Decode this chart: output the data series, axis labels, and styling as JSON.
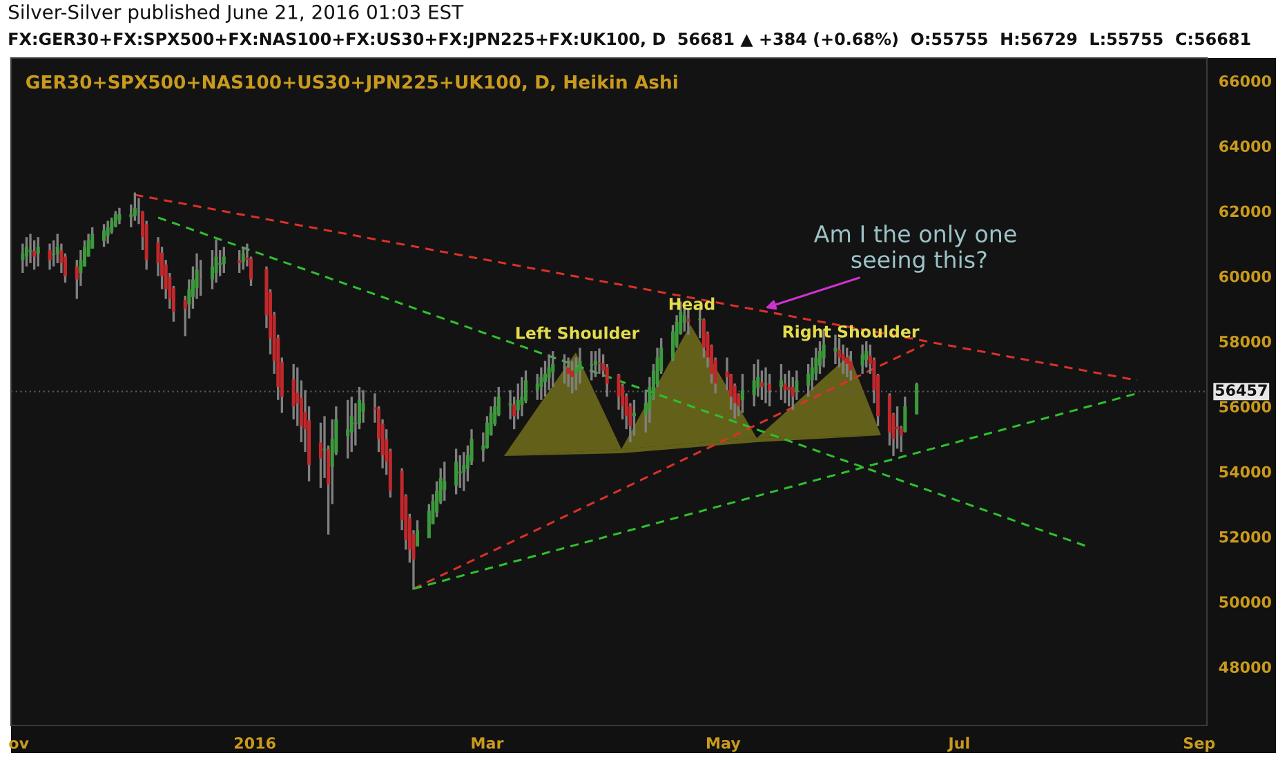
{
  "chart_data": {
    "type": "candlestick",
    "title": "GER30+SPX500+NAS100+US30+JPN225+UK100, D, Heikin Ashi",
    "x": [
      "2015-11-02",
      "2015-11-03",
      "2015-11-04",
      "2015-11-05",
      "2015-11-06",
      "2015-11-09",
      "2015-11-10",
      "2015-11-11",
      "2015-11-12",
      "2015-11-13",
      "2015-11-16",
      "2015-11-17",
      "2015-11-18",
      "2015-11-19",
      "2015-11-20",
      "2015-11-23",
      "2015-11-24",
      "2015-11-25",
      "2015-11-26",
      "2015-11-27",
      "2015-11-30",
      "2015-12-01",
      "2015-12-02",
      "2015-12-03",
      "2015-12-04",
      "2015-12-07",
      "2015-12-08",
      "2015-12-09",
      "2015-12-10",
      "2015-12-11",
      "2015-12-14",
      "2015-12-15",
      "2015-12-16",
      "2015-12-17",
      "2015-12-18",
      "2015-12-21",
      "2015-12-22",
      "2015-12-23",
      "2015-12-24",
      "2015-12-28",
      "2015-12-29",
      "2015-12-30",
      "2015-12-31",
      "2016-01-04",
      "2016-01-05",
      "2016-01-06",
      "2016-01-07",
      "2016-01-08",
      "2016-01-11",
      "2016-01-12",
      "2016-01-13",
      "2016-01-14",
      "2016-01-15",
      "2016-01-18",
      "2016-01-19",
      "2016-01-20",
      "2016-01-21",
      "2016-01-22",
      "2016-01-25",
      "2016-01-26",
      "2016-01-27",
      "2016-01-28",
      "2016-01-29",
      "2016-02-01",
      "2016-02-02",
      "2016-02-03",
      "2016-02-04",
      "2016-02-05",
      "2016-02-08",
      "2016-02-09",
      "2016-02-10",
      "2016-02-11",
      "2016-02-12",
      "2016-02-15",
      "2016-02-16",
      "2016-02-17",
      "2016-02-18",
      "2016-02-19",
      "2016-02-22",
      "2016-02-23",
      "2016-02-24",
      "2016-02-25",
      "2016-02-26",
      "2016-02-29",
      "2016-03-01",
      "2016-03-02",
      "2016-03-03",
      "2016-03-04",
      "2016-03-07",
      "2016-03-08",
      "2016-03-09",
      "2016-03-10",
      "2016-03-11",
      "2016-03-14",
      "2016-03-15",
      "2016-03-16",
      "2016-03-17",
      "2016-03-18",
      "2016-03-21",
      "2016-03-22",
      "2016-03-23",
      "2016-03-24",
      "2016-03-25",
      "2016-03-28",
      "2016-03-29",
      "2016-03-30",
      "2016-03-31",
      "2016-04-01",
      "2016-04-04",
      "2016-04-05",
      "2016-04-06",
      "2016-04-07",
      "2016-04-08",
      "2016-04-11",
      "2016-04-12",
      "2016-04-13",
      "2016-04-14",
      "2016-04-15",
      "2016-04-18",
      "2016-04-19",
      "2016-04-20",
      "2016-04-21",
      "2016-04-22",
      "2016-04-25",
      "2016-04-26",
      "2016-04-27",
      "2016-04-28",
      "2016-04-29",
      "2016-05-02",
      "2016-05-03",
      "2016-05-04",
      "2016-05-05",
      "2016-05-06",
      "2016-05-09",
      "2016-05-10",
      "2016-05-11",
      "2016-05-12",
      "2016-05-13",
      "2016-05-16",
      "2016-05-17",
      "2016-05-18",
      "2016-05-19",
      "2016-05-20",
      "2016-05-23",
      "2016-05-24",
      "2016-05-25",
      "2016-05-26",
      "2016-05-27",
      "2016-05-30",
      "2016-05-31",
      "2016-06-01",
      "2016-06-02",
      "2016-06-03",
      "2016-06-06",
      "2016-06-07",
      "2016-06-08",
      "2016-06-09",
      "2016-06-10",
      "2016-06-13",
      "2016-06-14",
      "2016-06-15",
      "2016-06-16",
      "2016-06-17",
      "2016-06-20"
    ],
    "ohlc": [
      [
        60500,
        61000,
        60100,
        60700
      ],
      [
        60600,
        61200,
        60300,
        60900
      ],
      [
        60750,
        61300,
        60400,
        60800
      ],
      [
        60780,
        61100,
        60200,
        60600
      ],
      [
        60690,
        61200,
        60300,
        60900
      ],
      [
        60800,
        61000,
        60200,
        60500
      ],
      [
        60650,
        61100,
        60300,
        60700
      ],
      [
        60680,
        61300,
        60400,
        60900
      ],
      [
        60790,
        61000,
        60100,
        60400
      ],
      [
        60600,
        60700,
        59800,
        60000
      ],
      [
        60300,
        60500,
        59300,
        59900
      ],
      [
        60100,
        60800,
        59700,
        60500
      ],
      [
        60300,
        61100,
        60300,
        60900
      ],
      [
        60600,
        61300,
        60600,
        61100
      ],
      [
        60850,
        61500,
        60850,
        61300
      ],
      [
        61080,
        61600,
        60900,
        61400
      ],
      [
        61240,
        61700,
        61000,
        61500
      ],
      [
        61370,
        61800,
        61300,
        61700
      ],
      [
        61530,
        62000,
        61500,
        61900
      ],
      [
        61720,
        62100,
        61600,
        61900
      ],
      [
        61810,
        62200,
        61500,
        61900
      ],
      [
        61850,
        62570,
        61700,
        62100
      ],
      [
        61980,
        62400,
        61600,
        62000
      ],
      [
        61990,
        62000,
        60800,
        61200
      ],
      [
        61600,
        61700,
        60200,
        60500
      ],
      [
        61050,
        61200,
        60000,
        60400
      ],
      [
        60720,
        60900,
        59600,
        60000
      ],
      [
        60360,
        60500,
        59300,
        59600
      ],
      [
        59980,
        60100,
        59000,
        59300
      ],
      [
        59640,
        59700,
        58600,
        58900
      ],
      [
        59270,
        59400,
        58160,
        59000
      ],
      [
        59130,
        59900,
        58700,
        59600
      ],
      [
        59360,
        60300,
        59000,
        59900
      ],
      [
        59630,
        60700,
        59300,
        60200
      ],
      [
        59910,
        60500,
        59400,
        59900
      ],
      [
        59900,
        60800,
        59600,
        60300
      ],
      [
        60100,
        61130,
        59800,
        60600
      ],
      [
        60350,
        60800,
        60000,
        60400
      ],
      [
        60380,
        60900,
        60100,
        60600
      ],
      [
        60490,
        60800,
        60100,
        60400
      ],
      [
        60440,
        60900,
        60200,
        60700
      ],
      [
        60570,
        61000,
        60300,
        60500
      ],
      [
        60540,
        60600,
        59700,
        59900
      ],
      [
        60220,
        60300,
        58400,
        58800
      ],
      [
        59510,
        59600,
        57600,
        58100
      ],
      [
        58810,
        58900,
        57000,
        57400
      ],
      [
        58110,
        58200,
        56200,
        56600
      ],
      [
        57360,
        57500,
        55800,
        56300
      ],
      [
        56830,
        57300,
        55600,
        56000
      ],
      [
        56420,
        57200,
        55400,
        56100
      ],
      [
        56260,
        56800,
        54900,
        55400
      ],
      [
        55830,
        56500,
        54600,
        55300
      ],
      [
        55570,
        56000,
        53700,
        54200
      ],
      [
        54890,
        55500,
        53500,
        54400
      ],
      [
        54650,
        55700,
        53800,
        54700
      ],
      [
        54680,
        54800,
        52060,
        53600
      ],
      [
        54140,
        55600,
        53000,
        55000
      ],
      [
        54570,
        56000,
        54500,
        55600
      ],
      [
        55090,
        56200,
        54400,
        55300
      ],
      [
        55200,
        56300,
        54600,
        55700
      ],
      [
        55450,
        56100,
        54800,
        55500
      ],
      [
        55480,
        56600,
        55300,
        56200
      ],
      [
        55840,
        56500,
        55500,
        56100
      ],
      [
        55970,
        56400,
        55500,
        55900
      ],
      [
        55930,
        56000,
        54600,
        55000
      ],
      [
        55470,
        55600,
        54100,
        54500
      ],
      [
        54990,
        55300,
        53900,
        54300
      ],
      [
        54640,
        54700,
        53200,
        53400
      ],
      [
        54020,
        54100,
        52200,
        52500
      ],
      [
        53260,
        53300,
        51600,
        51900
      ],
      [
        52580,
        52700,
        51200,
        51600
      ],
      [
        52090,
        52200,
        50370,
        51300
      ],
      [
        51700,
        52500,
        51700,
        52200
      ],
      [
        51950,
        53000,
        51950,
        52800
      ],
      [
        52380,
        53300,
        52380,
        53100
      ],
      [
        52740,
        53700,
        52600,
        53400
      ],
      [
        53070,
        54100,
        53000,
        53800
      ],
      [
        53440,
        54300,
        53100,
        53700
      ],
      [
        53570,
        54700,
        53300,
        54300
      ],
      [
        53940,
        54500,
        53500,
        54000
      ],
      [
        53970,
        54600,
        53400,
        54200
      ],
      [
        54090,
        54800,
        53700,
        54500
      ],
      [
        54300,
        55300,
        54200,
        55000
      ],
      [
        54650,
        55200,
        54300,
        54800
      ],
      [
        54730,
        55700,
        54700,
        55500
      ],
      [
        55120,
        56000,
        55100,
        55800
      ],
      [
        55460,
        56300,
        55400,
        56000
      ],
      [
        55730,
        56600,
        55700,
        56300
      ],
      [
        56020,
        56500,
        55600,
        56100
      ],
      [
        56060,
        56300,
        55300,
        55700
      ],
      [
        55880,
        56700,
        55600,
        56200
      ],
      [
        56040,
        56900,
        55700,
        56300
      ],
      [
        56170,
        57100,
        56100,
        56800
      ],
      [
        56490,
        57000,
        56200,
        56700
      ],
      [
        56600,
        57200,
        56200,
        56900
      ],
      [
        56750,
        57400,
        56300,
        57000
      ],
      [
        56880,
        57600,
        56500,
        57200
      ],
      [
        57040,
        57700,
        56600,
        57300
      ],
      [
        57170,
        57600,
        56700,
        57200
      ],
      [
        57190,
        57500,
        56600,
        57000
      ],
      [
        57100,
        57400,
        56400,
        56900
      ],
      [
        57000,
        57500,
        56500,
        57200
      ],
      [
        57100,
        57800,
        56700,
        57400
      ],
      [
        57250,
        57700,
        56800,
        57300
      ],
      [
        57280,
        57700,
        56900,
        57400
      ],
      [
        57340,
        57780,
        57000,
        57300
      ],
      [
        57320,
        57600,
        56900,
        57100
      ],
      [
        57210,
        57300,
        56300,
        56700
      ],
      [
        56960,
        57000,
        55900,
        56300
      ],
      [
        56630,
        56700,
        55600,
        56000
      ],
      [
        56310,
        56400,
        55300,
        55700
      ],
      [
        56010,
        56100,
        54900,
        55400
      ],
      [
        55700,
        56200,
        55100,
        55800
      ],
      [
        55750,
        56500,
        55200,
        56100
      ],
      [
        55930,
        56900,
        55500,
        56600
      ],
      [
        56260,
        57300,
        56200,
        57100
      ],
      [
        56680,
        57800,
        56600,
        57500
      ],
      [
        57090,
        58100,
        57000,
        57800
      ],
      [
        57450,
        58500,
        57400,
        58300
      ],
      [
        57870,
        58800,
        57800,
        58600
      ],
      [
        58240,
        59220,
        58200,
        58900
      ],
      [
        58570,
        59100,
        58300,
        58800
      ],
      [
        58690,
        59000,
        58200,
        58600
      ],
      [
        58650,
        59000,
        58100,
        58700
      ],
      [
        58670,
        58700,
        57500,
        57800
      ],
      [
        58240,
        58300,
        57200,
        57500
      ],
      [
        57870,
        57900,
        56700,
        57000
      ],
      [
        57440,
        57500,
        56400,
        56700
      ],
      [
        57070,
        57500,
        56500,
        56900
      ],
      [
        56990,
        57000,
        55900,
        56300
      ],
      [
        56640,
        56700,
        55620,
        56100
      ],
      [
        56370,
        56400,
        55700,
        56000
      ],
      [
        56190,
        57000,
        55800,
        56500
      ],
      [
        56340,
        57300,
        56000,
        56800
      ],
      [
        56570,
        57440,
        56300,
        56900
      ],
      [
        56740,
        57100,
        56200,
        56600
      ],
      [
        56670,
        57200,
        56100,
        56700
      ],
      [
        56690,
        57000,
        56000,
        56500
      ],
      [
        56600,
        57300,
        56200,
        56800
      ],
      [
        56700,
        57000,
        56100,
        56500
      ],
      [
        56600,
        57100,
        56000,
        56500
      ],
      [
        56600,
        56900,
        55900,
        56300
      ],
      [
        56450,
        57100,
        56200,
        56800
      ],
      [
        56630,
        57300,
        56300,
        57000
      ],
      [
        56810,
        57500,
        56500,
        57200
      ],
      [
        57010,
        57800,
        56800,
        57500
      ],
      [
        57250,
        58000,
        57000,
        57700
      ],
      [
        57480,
        58370,
        57200,
        57900
      ],
      [
        57690,
        58200,
        57300,
        57800
      ],
      [
        57740,
        58100,
        57200,
        57500
      ],
      [
        57620,
        57900,
        57000,
        57400
      ],
      [
        57510,
        57800,
        56900,
        57300
      ],
      [
        57400,
        57700,
        56800,
        57100
      ],
      [
        57250,
        57900,
        57000,
        57600
      ],
      [
        57430,
        58000,
        57200,
        57700
      ],
      [
        57560,
        57900,
        57000,
        57300
      ],
      [
        57430,
        57500,
        56100,
        56500
      ],
      [
        56960,
        57000,
        55400,
        55700
      ],
      [
        56330,
        56400,
        54800,
        55200
      ],
      [
        55760,
        55800,
        54480,
        55000
      ],
      [
        55380,
        56000,
        54700,
        55300
      ],
      [
        55340,
        55400,
        54600,
        55100
      ],
      [
        55220,
        56300,
        55200,
        56000
      ],
      [
        55755,
        56729,
        55755,
        56681
      ]
    ],
    "series": [
      {
        "type": "line",
        "x": [
          "2015-12-01",
          "2016-08-16"
        ],
        "values": [
          62500,
          56800
        ],
        "color": "#d9312b",
        "line_style": "dashed"
      },
      {
        "type": "line",
        "x": [
          "2015-12-07",
          "2016-08-03"
        ],
        "values": [
          61800,
          51700
        ],
        "color": "#2fbf2f",
        "line_style": "dashed"
      },
      {
        "type": "line",
        "x": [
          "2016-02-11",
          "2016-06-22"
        ],
        "values": [
          50400,
          57900
        ],
        "color": "#d9312b",
        "line_style": "dashed"
      },
      {
        "type": "line",
        "x": [
          "2016-02-11",
          "2016-08-16"
        ],
        "values": [
          50400,
          56400
        ],
        "color": "#2fbf2f",
        "line_style": "dashed"
      }
    ],
    "xlim": [
      "2015-10-30",
      "2016-09-03"
    ],
    "xticks": [
      {
        "value": "2015-11-01",
        "label": "ov"
      },
      {
        "value": "2016-01-01",
        "label": "2016"
      },
      {
        "value": "2016-03-01",
        "label": "Mar"
      },
      {
        "value": "2016-05-01",
        "label": "May"
      },
      {
        "value": "2016-07-01",
        "label": "Jul"
      },
      {
        "value": "2016-09-01",
        "label": "Sep"
      }
    ],
    "ylim": [
      46200,
      66700
    ],
    "yticks": [
      48000,
      50000,
      52000,
      54000,
      56000,
      58000,
      60000,
      62000,
      64000,
      66000
    ],
    "ref_lines": [
      {
        "axis": "y",
        "value": 56457,
        "label": "56457",
        "color": "#5a5a5a",
        "line_style": "dotted"
      }
    ],
    "annotations": [
      "Silver-Silver published June 21, 2016 01:03 EST",
      "FX:GER30+FX:SPX500+FX:NAS100+FX:US30+FX:JPN225+FX:UK100, D  56681 ▲ +384 (+0.68%)  O:55755  H:56729  L:55755  C:56681",
      "Left Shoulder",
      "Head",
      "Right Shoulder",
      {
        "text": "Am I the only one\n seeing this?",
        "x": "2016-05-10",
        "y": 58950
      }
    ],
    "grid": false,
    "legend": false
  }
}
